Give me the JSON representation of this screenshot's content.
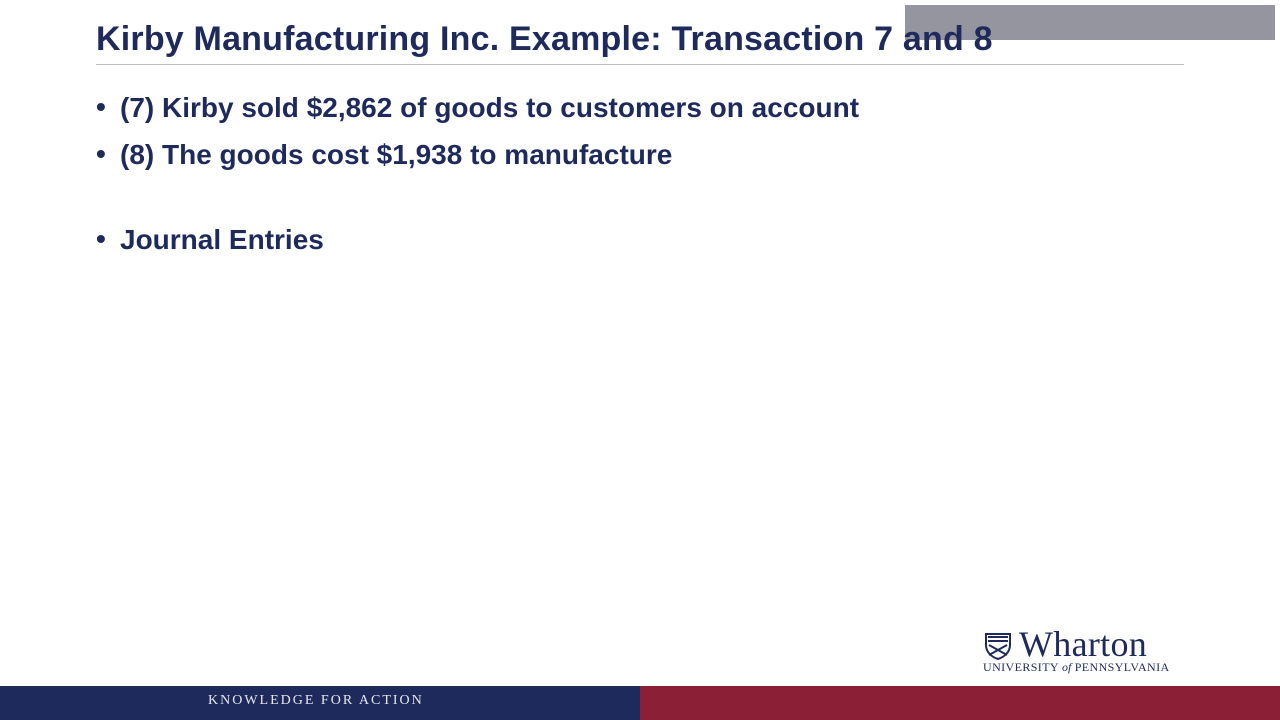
{
  "slide": {
    "title": "Kirby Manufacturing Inc. Example: Transaction 7 and 8",
    "bullets": [
      {
        "text": "(7) Kirby sold $2,862 of goods to customers on account"
      },
      {
        "text": "(8) The goods cost $1,938 to manufacture"
      },
      {
        "text": "Journal Entries"
      }
    ],
    "bullet_char": "•"
  },
  "branding": {
    "logo_name": "Wharton",
    "logo_subtitle_parts": {
      "part1": "UNIVERSITY",
      "part2": "of",
      "part3": "PENNSYLVANIA"
    },
    "footer_tagline": "KNOWLEDGE FOR ACTION",
    "colors": {
      "navy": "#1f2a5c",
      "maroon": "#8a1f35",
      "gray_bar": "#8f8f9b"
    },
    "icons": {
      "logo_mark": "shield-icon"
    }
  }
}
